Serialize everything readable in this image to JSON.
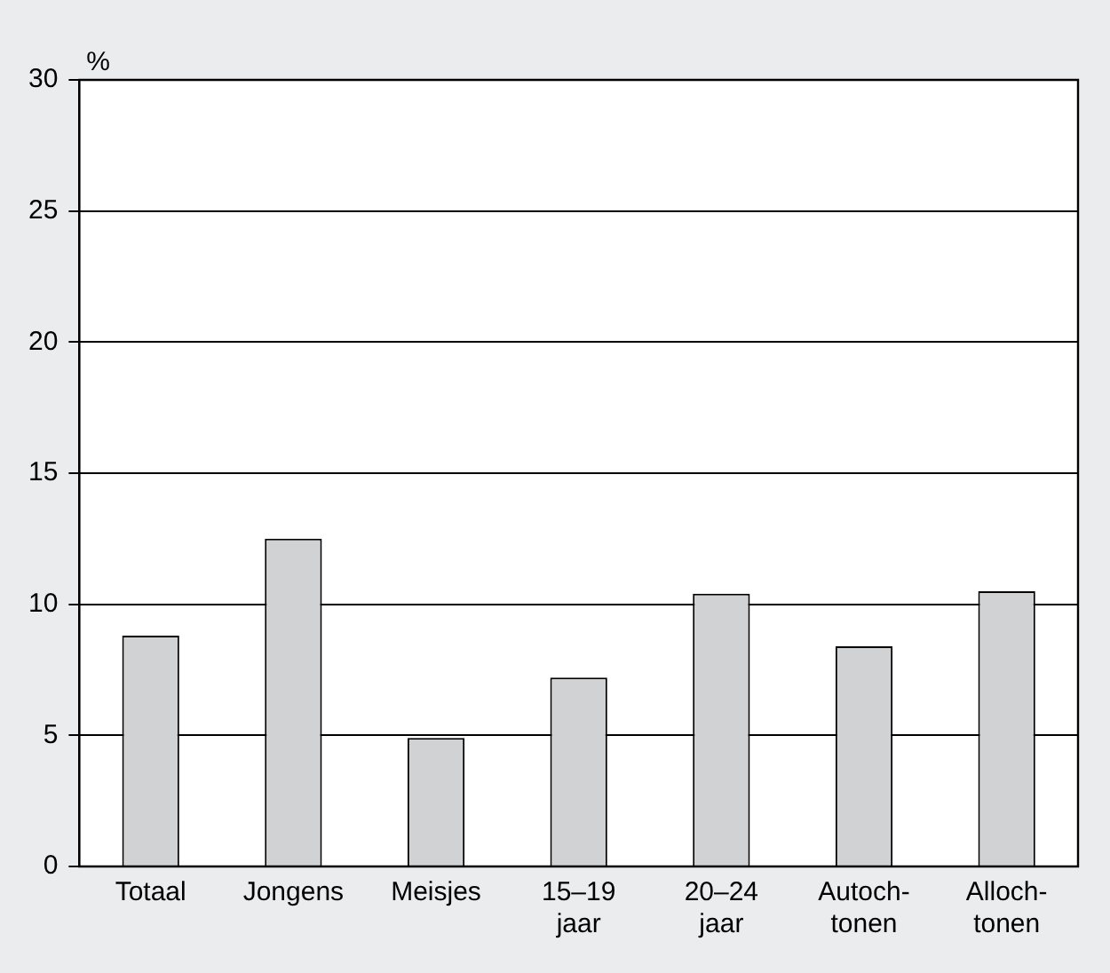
{
  "chart_data": {
    "type": "bar",
    "ylabel": "%",
    "categories": [
      "Totaal",
      "Jongens",
      "Meisjes",
      "15–19\njaar",
      "20–24\njaar",
      "Autoch-\ntonen",
      "Alloch-\ntonen"
    ],
    "values": [
      8.8,
      12.5,
      4.9,
      7.2,
      10.4,
      8.4,
      10.5
    ],
    "color": "#d1d2d4",
    "ylim": [
      0,
      30
    ],
    "yticks": [
      0,
      5,
      10,
      15,
      20,
      25,
      30
    ],
    "grid": "y"
  }
}
